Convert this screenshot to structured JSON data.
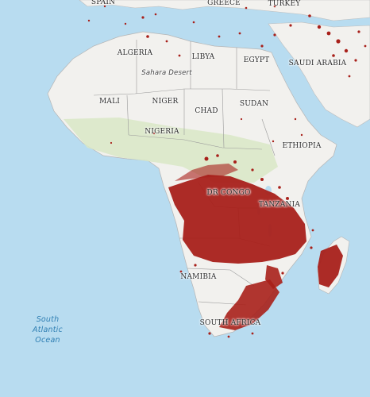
{
  "colors": {
    "ocean": "#b8dcf0",
    "land": "#f2f1ee",
    "vegetation": "#d9e8c6",
    "fire": "#a8201a",
    "border": "#9a9a9a"
  },
  "labels": {
    "spain": "SPAIN",
    "greece": "GREECE",
    "turkey": "TURKEY",
    "algeria": "ALGERIA",
    "libya": "LIBYA",
    "egypt": "EGYPT",
    "saudi_arabia": "SAUDI ARABIA",
    "sahara": "Sahara Desert",
    "mali": "MALI",
    "niger": "NIGER",
    "chad": "CHAD",
    "sudan": "SUDAN",
    "nigeria": "NIGERIA",
    "ethiopia": "ETHIOPIA",
    "dr_congo": "DR CONGO",
    "tanzania": "TANZANIA",
    "namibia": "NAMIBIA",
    "south_africa": "SOUTH AFRICA"
  },
  "ocean_label": {
    "line1": "South",
    "line2": "Atlantic",
    "line3": "Ocean"
  }
}
